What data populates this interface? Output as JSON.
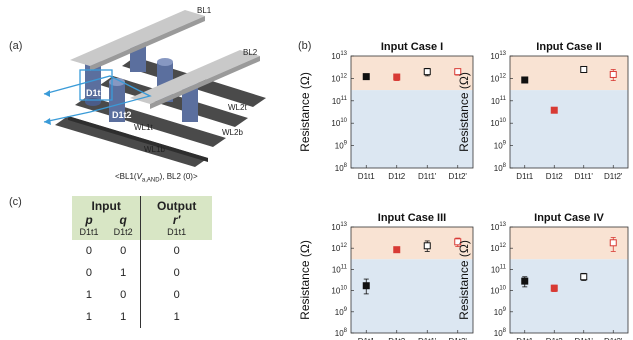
{
  "panels": {
    "a": {
      "label": "(a)"
    },
    "b": {
      "label": "(b)"
    },
    "c": {
      "label": "(c)"
    }
  },
  "schematic": {
    "bl1": "BL1",
    "bl2": "BL2",
    "d1t1": "D1t1",
    "d1t2": "D1t2",
    "wl2t": "WL2t",
    "wl1t": "WL1t",
    "wl2b": "WL2b",
    "wl1b": "WL1b",
    "caption": {
      "prefix": "<BL1(",
      "v": "V",
      "sub": "a,AND",
      "suffix": "), BL2 (0)>"
    }
  },
  "truth_table": {
    "input_header": "Input",
    "output_header": "Output",
    "vars": [
      "p",
      "q",
      "r′"
    ],
    "devices": [
      "D1t1",
      "D1t2",
      "D1t1"
    ],
    "rows": [
      [
        "0",
        "0",
        "0"
      ],
      [
        "0",
        "1",
        "0"
      ],
      [
        "1",
        "0",
        "0"
      ],
      [
        "1",
        "1",
        "1"
      ]
    ]
  },
  "colors": {
    "high_band": "#f9e3d3",
    "low_band": "#dce7f2",
    "black_series": "#111111",
    "red_series": "#d83a34",
    "table_header": "#d8e6c5"
  },
  "chart_data": [
    {
      "type": "scatter",
      "title": "Input Case I",
      "ylabel": "Resistance (Ω)",
      "yscale": "log",
      "ylim": [
        100000000,
        10000000000000
      ],
      "band_boundary": 300000000000,
      "yticks": [
        {
          "b": "10",
          "e": "13"
        },
        {
          "b": "10",
          "e": "12"
        },
        {
          "b": "10",
          "e": "11"
        },
        {
          "b": "10",
          "e": "10"
        },
        {
          "b": "10",
          "e": "9"
        },
        {
          "b": "10",
          "e": "8"
        }
      ],
      "categories": [
        "D1t1",
        "D1t2",
        "D1t1'",
        "D1t2'"
      ],
      "points": [
        {
          "x": "D1t1",
          "y": 1200000000000,
          "low": 900000000000,
          "high": 1500000000000,
          "color": "#111111",
          "filled": true
        },
        {
          "x": "D1t2",
          "y": 1150000000000,
          "low": 800000000000,
          "high": 1500000000000,
          "color": "#d83a34",
          "filled": true
        },
        {
          "x": "D1t1'",
          "y": 2000000000000,
          "low": 1300000000000,
          "high": 2800000000000,
          "color": "#111111",
          "filled": false
        },
        {
          "x": "D1t2'",
          "y": 2000000000000,
          "low": 1400000000000,
          "high": 2600000000000,
          "color": "#d83a34",
          "filled": false
        }
      ]
    },
    {
      "type": "scatter",
      "title": "Input Case II",
      "ylabel": "Resistance (Ω)",
      "yscale": "log",
      "ylim": [
        100000000,
        10000000000000
      ],
      "band_boundary": 300000000000,
      "yticks": [
        {
          "b": "10",
          "e": "13"
        },
        {
          "b": "10",
          "e": "12"
        },
        {
          "b": "10",
          "e": "11"
        },
        {
          "b": "10",
          "e": "10"
        },
        {
          "b": "10",
          "e": "9"
        },
        {
          "b": "10",
          "e": "8"
        }
      ],
      "categories": [
        "D1t1",
        "D1t2",
        "D1t1'",
        "D1t2'"
      ],
      "points": [
        {
          "x": "D1t1",
          "y": 850000000000,
          "low": 700000000000,
          "high": 1000000000000,
          "color": "#111111",
          "filled": true
        },
        {
          "x": "D1t2",
          "y": 38000000000,
          "low": 33000000000,
          "high": 43000000000,
          "color": "#d83a34",
          "filled": true
        },
        {
          "x": "D1t1'",
          "y": 2500000000000,
          "low": 2000000000000,
          "high": 3200000000000,
          "color": "#111111",
          "filled": false
        },
        {
          "x": "D1t2'",
          "y": 1500000000000,
          "low": 800000000000,
          "high": 2500000000000,
          "color": "#d83a34",
          "filled": false
        }
      ]
    },
    {
      "type": "scatter",
      "title": "Input Case III",
      "ylabel": "Resistance (Ω)",
      "yscale": "log",
      "ylim": [
        100000000,
        10000000000000
      ],
      "band_boundary": 300000000000,
      "yticks": [
        {
          "b": "10",
          "e": "13"
        },
        {
          "b": "10",
          "e": "12"
        },
        {
          "b": "10",
          "e": "11"
        },
        {
          "b": "10",
          "e": "10"
        },
        {
          "b": "10",
          "e": "9"
        },
        {
          "b": "10",
          "e": "8"
        }
      ],
      "categories": [
        "D1t1",
        "D1t2",
        "D1t1'",
        "D1t2'"
      ],
      "points": [
        {
          "x": "D1t1",
          "y": 17000000000,
          "low": 7000000000,
          "high": 35000000000,
          "color": "#111111",
          "filled": true
        },
        {
          "x": "D1t2",
          "y": 850000000000,
          "low": 750000000000,
          "high": 950000000000,
          "color": "#d83a34",
          "filled": true
        },
        {
          "x": "D1t1'",
          "y": 1300000000000,
          "low": 700000000000,
          "high": 2200000000000,
          "color": "#111111",
          "filled": false
        },
        {
          "x": "D1t2'",
          "y": 2000000000000,
          "low": 1200000000000,
          "high": 3000000000000,
          "color": "#d83a34",
          "filled": false
        }
      ]
    },
    {
      "type": "scatter",
      "title": "Input Case IV",
      "ylabel": "Resistance (Ω)",
      "yscale": "log",
      "ylim": [
        100000000,
        10000000000000
      ],
      "band_boundary": 300000000000,
      "yticks": [
        {
          "b": "10",
          "e": "13"
        },
        {
          "b": "10",
          "e": "12"
        },
        {
          "b": "10",
          "e": "11"
        },
        {
          "b": "10",
          "e": "10"
        },
        {
          "b": "10",
          "e": "9"
        },
        {
          "b": "10",
          "e": "8"
        }
      ],
      "categories": [
        "D1t1",
        "D1t2",
        "D1t1'",
        "D1t2'"
      ],
      "points": [
        {
          "x": "D1t1",
          "y": 28000000000,
          "low": 15000000000,
          "high": 45000000000,
          "color": "#111111",
          "filled": true
        },
        {
          "x": "D1t2",
          "y": 13000000000,
          "low": 9000000000,
          "high": 18000000000,
          "color": "#d83a34",
          "filled": true
        },
        {
          "x": "D1t1'",
          "y": 45000000000,
          "low": 30000000000,
          "high": 65000000000,
          "color": "#111111",
          "filled": false
        },
        {
          "x": "D1t2'",
          "y": 1800000000000,
          "low": 700000000000,
          "high": 3200000000000,
          "color": "#d83a34",
          "filled": false
        }
      ]
    }
  ]
}
